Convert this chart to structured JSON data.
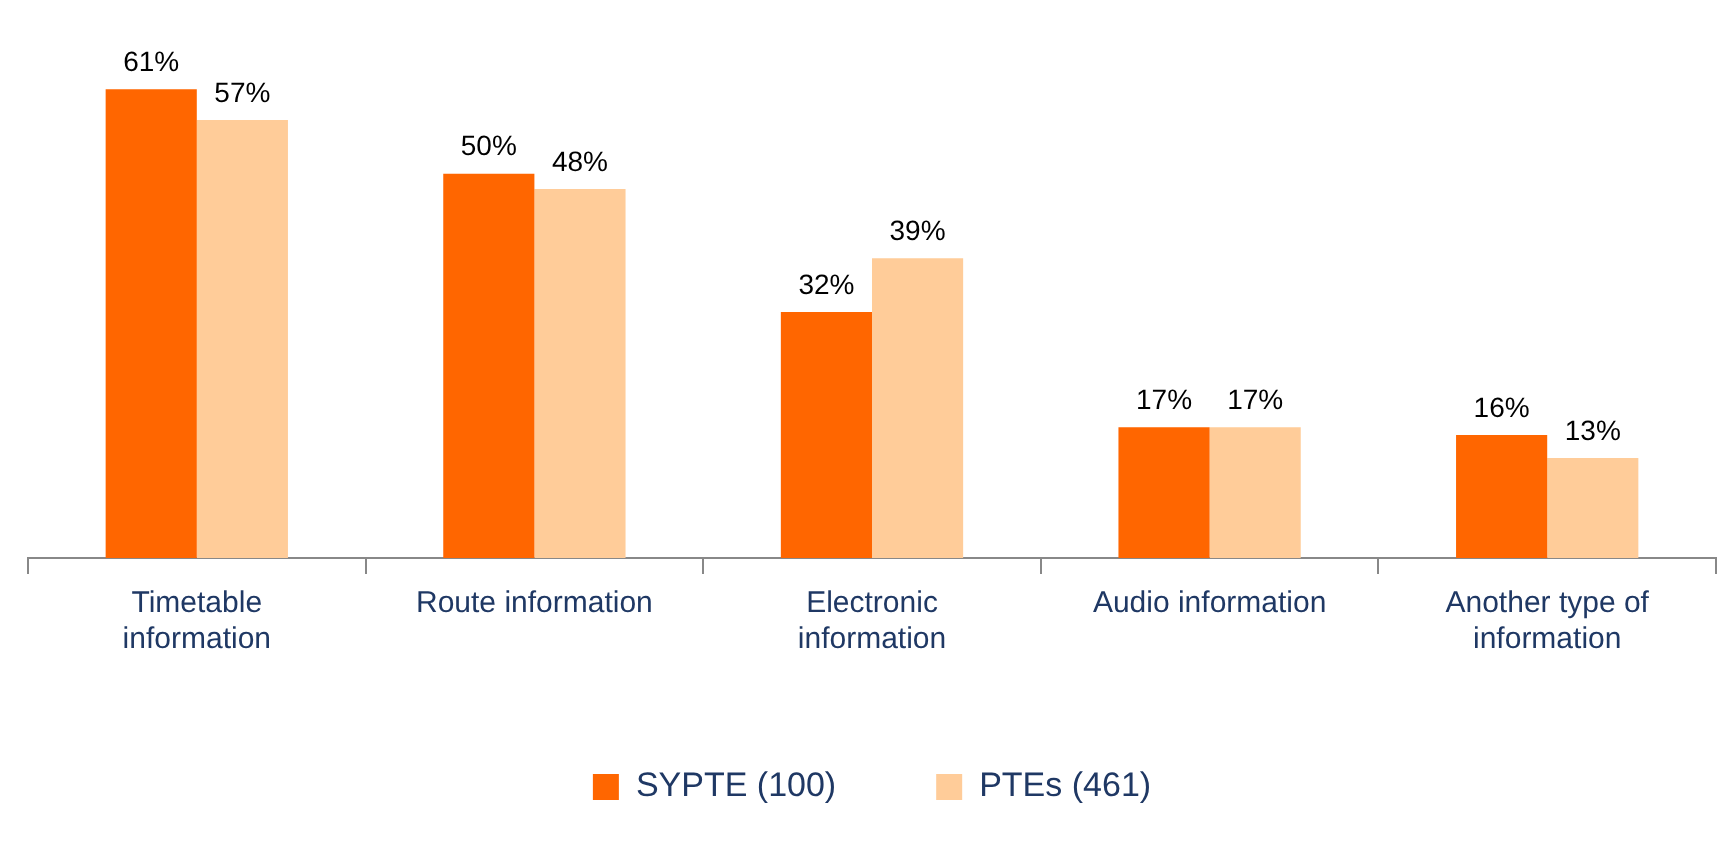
{
  "chart_data": {
    "type": "bar",
    "categories": [
      "Timetable information",
      "Route information",
      "Electronic information",
      "Audio information",
      "Another type of information"
    ],
    "series": [
      {
        "name": "SYPTE (100)",
        "color": "#ff6600",
        "values": [
          61,
          50,
          32,
          17,
          16
        ],
        "value_labels": [
          "61%",
          "50%",
          "32%",
          "17%",
          "16%"
        ]
      },
      {
        "name": "PTEs (461)",
        "color": "#ffcc99",
        "values": [
          57,
          48,
          39,
          17,
          13
        ],
        "value_labels": [
          "57%",
          "48%",
          "39%",
          "17%",
          "13%"
        ]
      }
    ],
    "legend": "bottom",
    "grid": false
  }
}
